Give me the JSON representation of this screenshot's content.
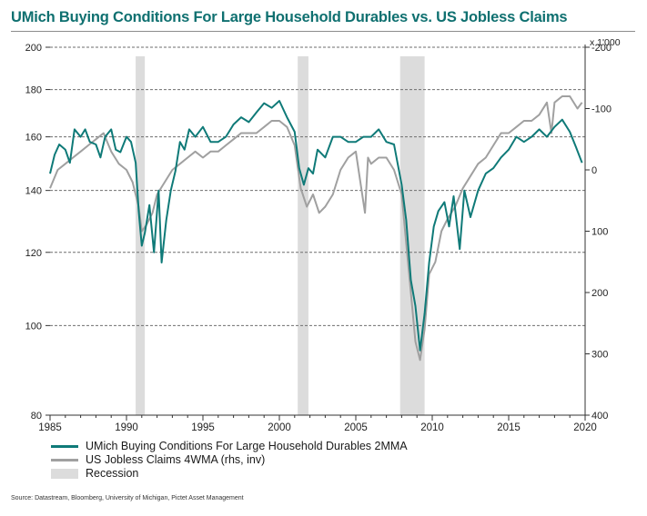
{
  "title": "UMich Buying Conditions For Large Household Durables vs. US Jobless Claims",
  "source": "Source: Datastream, Bloomberg, University of Michigan, Pictet Asset Management",
  "legend": {
    "umich": "UMich Buying Conditions For Large Household Durables 2MMA",
    "claims": "US Jobless Claims 4WMA (rhs, inv)",
    "recession": "Recession"
  },
  "colors": {
    "umich": "#0f7a78",
    "claims": "#a0a0a0",
    "recession": "#dcdcdc",
    "title": "#0f7070"
  },
  "chart_data": {
    "type": "line",
    "title": "UMich Buying Conditions For Large Household Durables vs. US Jobless Claims",
    "xlim": [
      1985,
      2020
    ],
    "x_ticks": [
      "1985",
      "1990",
      "1995",
      "2000",
      "2005",
      "2010",
      "2015",
      "2020"
    ],
    "left_axis": {
      "scale": "log",
      "ylim": [
        80,
        200
      ],
      "ticks": [
        "80",
        "100",
        "120",
        "140",
        "160",
        "180",
        "200"
      ]
    },
    "right_axis": {
      "unit": "x 1'000",
      "inverted": true,
      "ylim": [
        400,
        -200
      ],
      "ticks": [
        "400",
        "300",
        "200",
        "100",
        "0",
        "-100",
        "-200"
      ]
    },
    "grid": "horizontal dashed",
    "recessions": [
      [
        1990.6,
        1991.2
      ],
      [
        2001.2,
        2001.9
      ],
      [
        2007.9,
        2009.5
      ]
    ],
    "series": [
      {
        "name": "UMich Buying Conditions For Large Household Durables 2MMA",
        "axis": "left",
        "x": [
          1985.0,
          1985.3,
          1985.6,
          1986.0,
          1986.3,
          1986.6,
          1987.0,
          1987.3,
          1987.6,
          1988.0,
          1988.3,
          1988.6,
          1989.0,
          1989.3,
          1989.6,
          1990.0,
          1990.3,
          1990.6,
          1990.8,
          1991.0,
          1991.2,
          1991.5,
          1991.8,
          1992.1,
          1992.3,
          1992.6,
          1992.9,
          1993.2,
          1993.5,
          1993.8,
          1994.1,
          1994.5,
          1995.0,
          1995.5,
          1996.0,
          1996.5,
          1997.0,
          1997.5,
          1998.0,
          1998.5,
          1999.0,
          1999.5,
          2000.0,
          2000.5,
          2001.0,
          2001.3,
          2001.6,
          2001.9,
          2002.2,
          2002.5,
          2003.0,
          2003.5,
          2004.0,
          2004.5,
          2005.0,
          2005.5,
          2006.0,
          2006.5,
          2007.0,
          2007.5,
          2008.0,
          2008.3,
          2008.6,
          2008.9,
          2009.2,
          2009.5,
          2009.8,
          2010.1,
          2010.4,
          2010.8,
          2011.1,
          2011.4,
          2011.8,
          2012.1,
          2012.5,
          2013.0,
          2013.5,
          2014.0,
          2014.5,
          2015.0,
          2015.5,
          2016.0,
          2016.5,
          2017.0,
          2017.5,
          2018.0,
          2018.5,
          2019.0,
          2019.4,
          2019.8
        ],
        "values": [
          146,
          153,
          157,
          155,
          150,
          163,
          160,
          163,
          158,
          157,
          152,
          160,
          163,
          155,
          154,
          160,
          158,
          150,
          133,
          122,
          126,
          135,
          120,
          140,
          117,
          130,
          140,
          147,
          158,
          155,
          163,
          160,
          164,
          158,
          158,
          160,
          165,
          168,
          166,
          170,
          174,
          172,
          175,
          168,
          162,
          148,
          142,
          148,
          146,
          155,
          152,
          160,
          160,
          158,
          158,
          160,
          160,
          163,
          158,
          157,
          142,
          130,
          112,
          105,
          94,
          103,
          117,
          128,
          133,
          136,
          128,
          138,
          121,
          140,
          131,
          140,
          146,
          148,
          152,
          155,
          160,
          158,
          160,
          163,
          160,
          164,
          167,
          162,
          156,
          150
        ]
      },
      {
        "name": "US Jobless Claims 4WMA (rhs, inv)",
        "axis": "right",
        "x": [
          1985.0,
          1985.5,
          1986.0,
          1986.5,
          1987.0,
          1987.5,
          1988.0,
          1988.5,
          1989.0,
          1989.5,
          1990.0,
          1990.4,
          1990.8,
          1991.0,
          1991.3,
          1991.7,
          1992.0,
          1992.5,
          1993.0,
          1993.5,
          1994.0,
          1994.5,
          1995.0,
          1995.5,
          1996.0,
          1996.5,
          1997.0,
          1997.5,
          1998.0,
          1998.5,
          1999.0,
          1999.5,
          2000.0,
          2000.5,
          2001.0,
          2001.4,
          2001.8,
          2002.2,
          2002.6,
          2003.0,
          2003.5,
          2004.0,
          2004.5,
          2005.0,
          2005.6,
          2005.8,
          2006.0,
          2006.5,
          2007.0,
          2007.5,
          2008.0,
          2008.3,
          2008.6,
          2008.9,
          2009.2,
          2009.5,
          2009.8,
          2010.2,
          2010.6,
          2011.0,
          2011.5,
          2012.0,
          2012.5,
          2013.0,
          2013.5,
          2014.0,
          2014.5,
          2015.0,
          2015.5,
          2016.0,
          2016.5,
          2017.0,
          2017.5,
          2017.8,
          2018.0,
          2018.5,
          2019.0,
          2019.5,
          2019.8
        ],
        "values": [
          30,
          0,
          -10,
          -20,
          -30,
          -40,
          -50,
          -60,
          -30,
          -10,
          0,
          20,
          60,
          100,
          90,
          70,
          40,
          20,
          0,
          -10,
          -20,
          -30,
          -20,
          -30,
          -30,
          -40,
          -50,
          -60,
          -60,
          -60,
          -70,
          -80,
          -80,
          -70,
          -40,
          30,
          60,
          40,
          70,
          60,
          40,
          0,
          -20,
          -30,
          70,
          -20,
          -10,
          -20,
          -20,
          0,
          40,
          120,
          200,
          280,
          310,
          260,
          170,
          150,
          100,
          80,
          60,
          30,
          10,
          -10,
          -20,
          -40,
          -60,
          -60,
          -70,
          -80,
          -80,
          -90,
          -110,
          -60,
          -110,
          -120,
          -120,
          -100,
          -110
        ]
      }
    ]
  }
}
